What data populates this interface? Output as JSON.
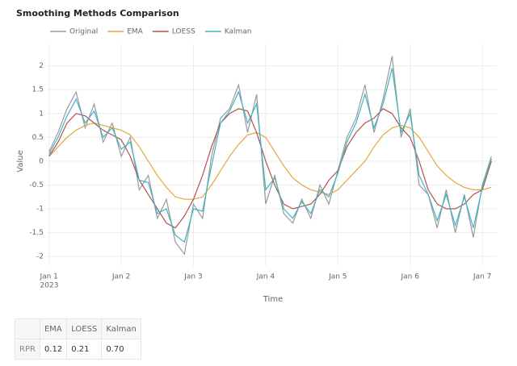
{
  "chart_data": {
    "type": "line",
    "title": "Smoothing Methods Comparison",
    "x_label": "Time",
    "y_label": "Value",
    "x": [
      0,
      0.125,
      0.25,
      0.375,
      0.5,
      0.625,
      0.75,
      0.875,
      1,
      1.125,
      1.25,
      1.375,
      1.5,
      1.625,
      1.75,
      1.875,
      2,
      2.125,
      2.25,
      2.375,
      2.5,
      2.625,
      2.75,
      2.875,
      3,
      3.125,
      3.25,
      3.375,
      3.5,
      3.625,
      3.75,
      3.875,
      4,
      4.125,
      4.25,
      4.375,
      4.5,
      4.625,
      4.75,
      4.875,
      5,
      5.125,
      5.25,
      5.375,
      5.5,
      5.625,
      5.75,
      5.875,
      6,
      6.125
    ],
    "xlim": [
      -0.03,
      6.2
    ],
    "xticks": [
      {
        "value": 0,
        "label": "Jan 1"
      },
      {
        "value": 1,
        "label": "Jan 2"
      },
      {
        "value": 2,
        "label": "Jan 3"
      },
      {
        "value": 3,
        "label": "Jan 4"
      },
      {
        "value": 4,
        "label": "Jan 5"
      },
      {
        "value": 5,
        "label": "Jan 6"
      },
      {
        "value": 6,
        "label": "Jan 7"
      }
    ],
    "x_year_label": "2023",
    "ylim": [
      -2.2,
      2.45
    ],
    "yticks": [
      -2,
      -1.5,
      -1,
      -0.5,
      0,
      0.5,
      1,
      1.5,
      2
    ],
    "grid": true,
    "series": [
      {
        "name": "Original",
        "color": "#9a9a9a",
        "values": [
          0.2,
          0.6,
          1.1,
          1.45,
          0.7,
          1.2,
          0.4,
          0.8,
          0.1,
          0.5,
          -0.6,
          -0.3,
          -1.2,
          -0.8,
          -1.7,
          -1.95,
          -0.9,
          -1.2,
          0.1,
          0.9,
          1.1,
          1.6,
          0.6,
          1.4,
          -0.9,
          -0.3,
          -1.1,
          -1.3,
          -0.8,
          -1.2,
          -0.5,
          -0.9,
          -0.2,
          0.5,
          0.9,
          1.6,
          0.6,
          1.3,
          2.2,
          0.5,
          1.1,
          -0.5,
          -0.7,
          -1.4,
          -0.6,
          -1.5,
          -0.7,
          -1.6,
          -0.5,
          0.1
        ]
      },
      {
        "name": "EMA",
        "color": "#e2a83a",
        "values": [
          0.1,
          0.3,
          0.5,
          0.65,
          0.75,
          0.8,
          0.75,
          0.7,
          0.65,
          0.55,
          0.3,
          0,
          -0.3,
          -0.55,
          -0.75,
          -0.8,
          -0.8,
          -0.75,
          -0.5,
          -0.2,
          0.1,
          0.35,
          0.55,
          0.6,
          0.5,
          0.2,
          -0.1,
          -0.35,
          -0.5,
          -0.6,
          -0.65,
          -0.7,
          -0.6,
          -0.4,
          -0.2,
          0,
          0.3,
          0.55,
          0.7,
          0.75,
          0.7,
          0.5,
          0.2,
          -0.1,
          -0.3,
          -0.45,
          -0.55,
          -0.6,
          -0.6,
          -0.55
        ]
      },
      {
        "name": "LOESS",
        "color": "#b5504f",
        "values": [
          0.1,
          0.4,
          0.8,
          1,
          0.95,
          0.8,
          0.65,
          0.55,
          0.45,
          0.1,
          -0.4,
          -0.7,
          -1,
          -1.3,
          -1.4,
          -1.15,
          -0.8,
          -0.3,
          0.3,
          0.8,
          1,
          1.1,
          1.05,
          0.6,
          0,
          -0.5,
          -0.9,
          -1,
          -0.95,
          -0.9,
          -0.7,
          -0.4,
          -0.2,
          0.3,
          0.6,
          0.8,
          0.9,
          1.1,
          1,
          0.7,
          0.5,
          0,
          -0.6,
          -0.9,
          -1,
          -1,
          -0.9,
          -0.7,
          -0.6,
          0
        ]
      },
      {
        "name": "Kalman",
        "color": "#3db5c2",
        "values": [
          0.15,
          0.5,
          0.95,
          1.3,
          0.8,
          1.05,
          0.5,
          0.7,
          0.25,
          0.4,
          -0.4,
          -0.45,
          -1.1,
          -1,
          -1.55,
          -1.7,
          -1,
          -1.05,
          -0.1,
          0.8,
          1.05,
          1.45,
          0.8,
          1.2,
          -0.6,
          -0.35,
          -1,
          -1.2,
          -0.85,
          -1.1,
          -0.6,
          -0.75,
          -0.25,
          0.4,
          0.8,
          1.4,
          0.7,
          1.2,
          1.95,
          0.6,
          1,
          -0.3,
          -0.7,
          -1.25,
          -0.7,
          -1.35,
          -0.75,
          -1.4,
          -0.55,
          0.05
        ]
      }
    ]
  },
  "table": {
    "header": [
      "",
      "EMA",
      "LOESS",
      "Kalman"
    ],
    "rows": [
      [
        "RPR",
        "0.12",
        "0.21",
        "0.70"
      ]
    ]
  }
}
